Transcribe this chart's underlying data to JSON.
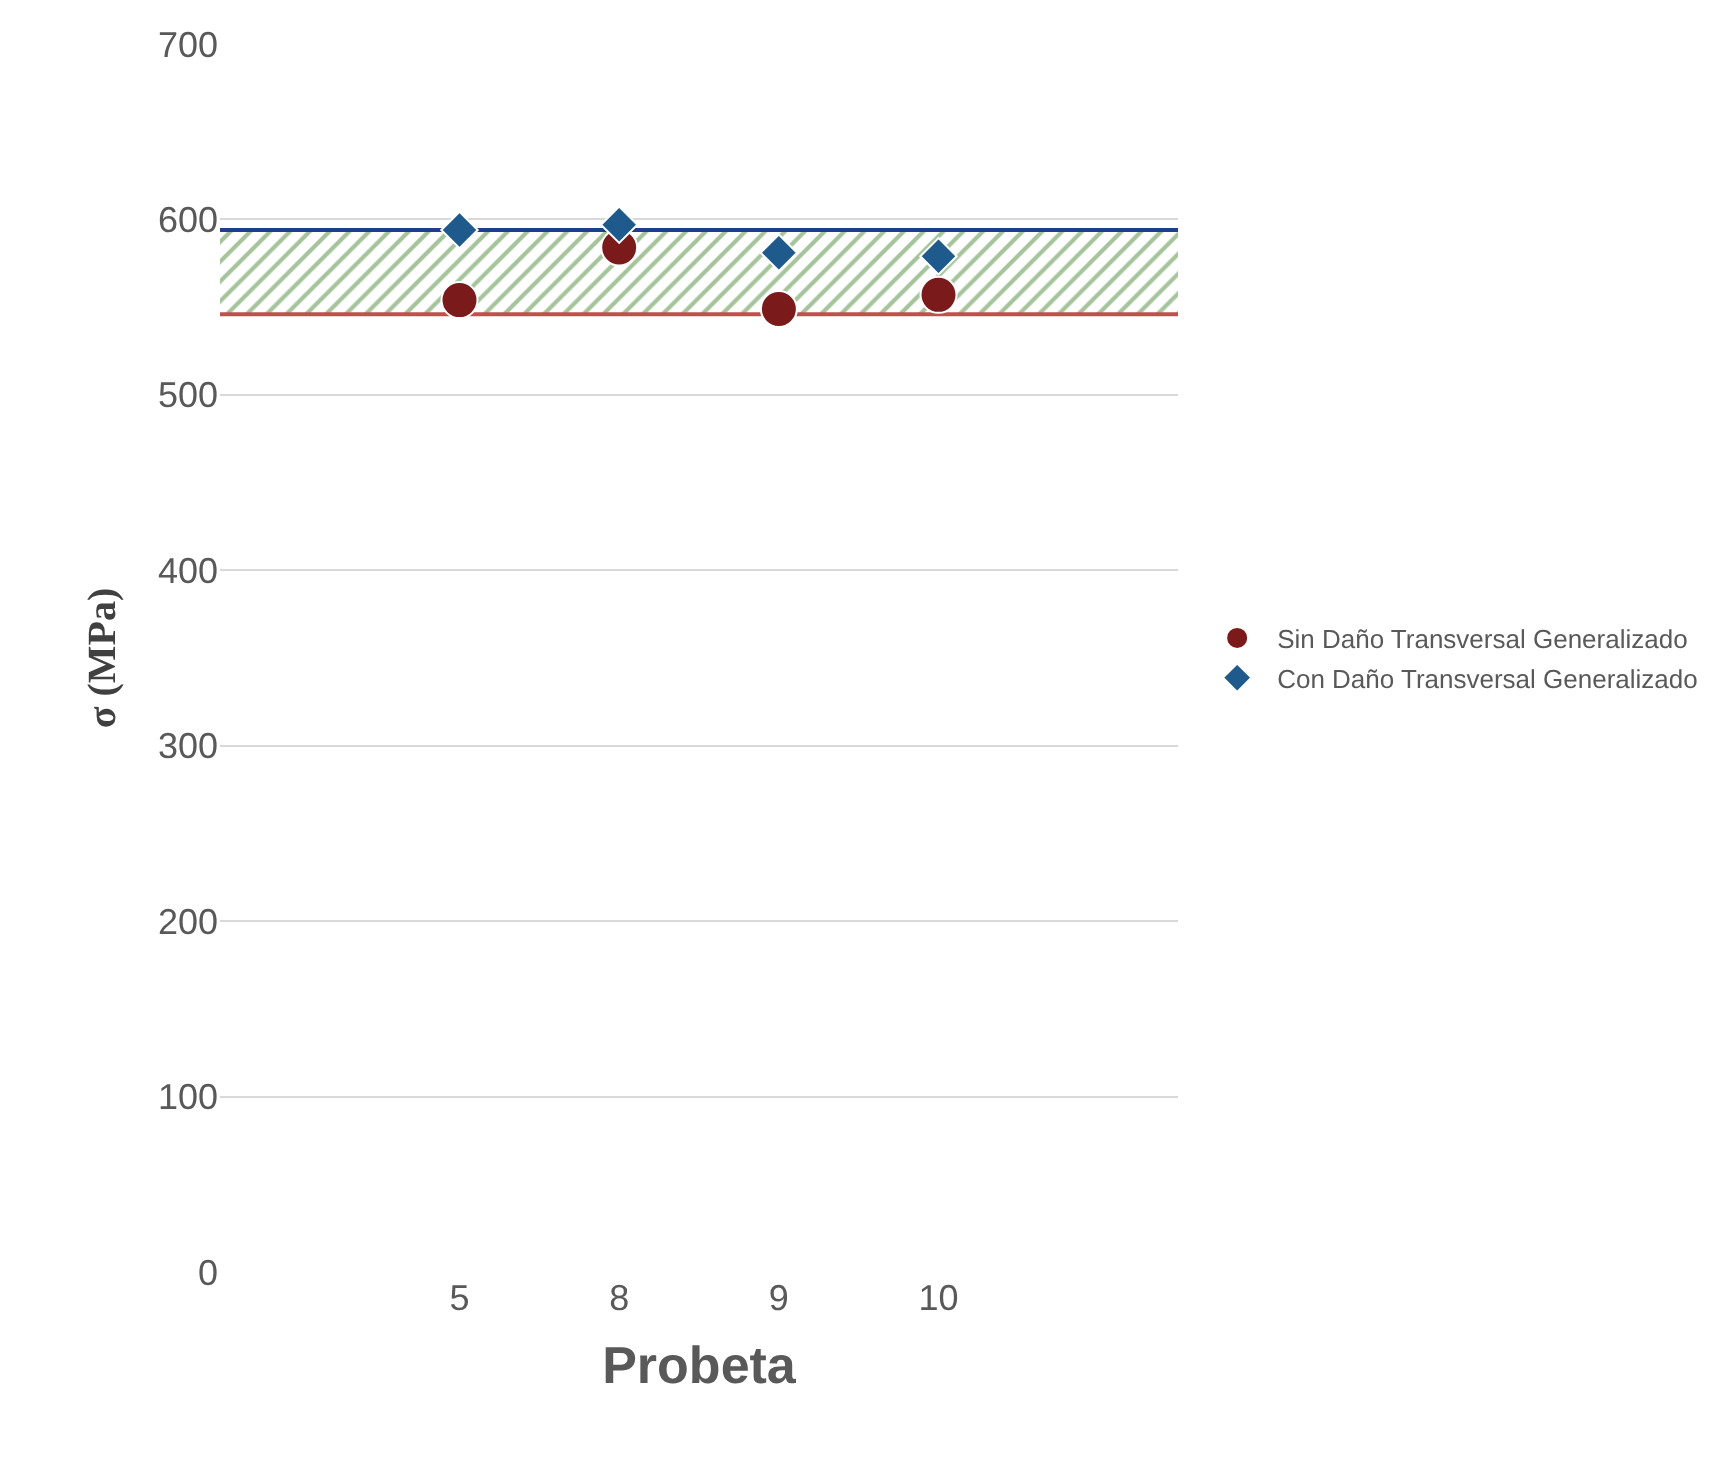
{
  "chart_data": {
    "type": "scatter",
    "xlabel": "Probeta",
    "ylabel": "σ (MPa)",
    "categories": [
      null,
      "5",
      "8",
      "9",
      "10",
      null
    ],
    "series": [
      {
        "name": "Sin Daño Transversal Generalizado",
        "color": "#7b1a1a",
        "marker": "circle",
        "values": [
          null,
          554,
          584,
          549,
          557,
          null
        ]
      },
      {
        "name": "Con Daño Transversal Generalizado",
        "color": "#1f5a8c",
        "marker": "diamond",
        "values": [
          null,
          594,
          597,
          581,
          579,
          null
        ]
      }
    ],
    "bands": [
      {
        "axis": "y",
        "from": 546,
        "to": 594,
        "color": "#4e8a3a"
      }
    ],
    "ref_lines": [
      {
        "axis": "y",
        "value": 546,
        "color": "#c0504d"
      },
      {
        "axis": "y",
        "value": 594,
        "color": "#1f3f8c"
      }
    ],
    "ylim": [
      0,
      700
    ],
    "yticks": [
      0,
      100,
      200,
      300,
      400,
      500,
      600,
      700
    ],
    "grid": "y",
    "legend": "right"
  }
}
